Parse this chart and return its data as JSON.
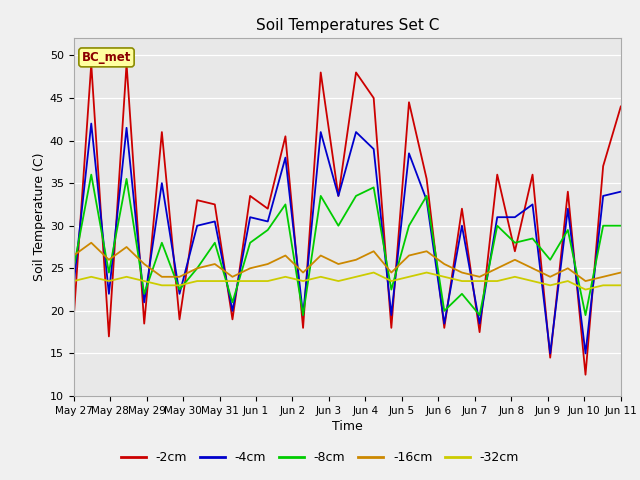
{
  "title": "Soil Temperatures Set C",
  "xlabel": "Time",
  "ylabel": "Soil Temperature (C)",
  "ylim": [
    10,
    52
  ],
  "yticks": [
    10,
    15,
    20,
    25,
    30,
    35,
    40,
    45,
    50
  ],
  "bg_color": "#e8e8e8",
  "fig_color": "#f0f0f0",
  "label_box": "BC_met",
  "series_colors": {
    "-2cm": "#cc0000",
    "-4cm": "#0000cc",
    "-8cm": "#00cc00",
    "-16cm": "#cc8800",
    "-32cm": "#cccc00"
  },
  "x_labels": [
    "May 27",
    "May 28",
    "May 29",
    "May 30",
    "May 31",
    "Jun 1",
    "Jun 2",
    "Jun 3",
    "Jun 4",
    "Jun 5",
    "Jun 6",
    "Jun 7",
    "Jun 8",
    "Jun 9",
    "Jun 10",
    "Jun 11"
  ],
  "series": {
    "-2cm": [
      19.0,
      49.0,
      17.0,
      49.0,
      18.5,
      41.0,
      19.0,
      33.0,
      32.5,
      19.0,
      33.5,
      32.0,
      40.5,
      18.0,
      48.0,
      33.5,
      48.0,
      45.0,
      18.0,
      44.5,
      35.5,
      18.0,
      32.0,
      17.5,
      36.0,
      27.0,
      36.0,
      14.5,
      34.0,
      12.5,
      37.0,
      44.0
    ],
    "-4cm": [
      23.0,
      42.0,
      22.0,
      41.5,
      21.0,
      35.0,
      22.0,
      30.0,
      30.5,
      20.0,
      31.0,
      30.5,
      38.0,
      19.5,
      41.0,
      33.5,
      41.0,
      39.0,
      19.5,
      38.5,
      33.0,
      18.5,
      30.0,
      18.5,
      31.0,
      31.0,
      32.5,
      15.0,
      32.0,
      15.0,
      33.5,
      34.0
    ],
    "-8cm": [
      25.0,
      36.0,
      24.5,
      35.5,
      22.0,
      28.0,
      22.5,
      25.0,
      28.0,
      21.0,
      28.0,
      29.5,
      32.5,
      19.5,
      33.5,
      30.0,
      33.5,
      34.5,
      22.5,
      30.0,
      33.5,
      20.0,
      22.0,
      19.5,
      30.0,
      28.0,
      28.5,
      26.0,
      29.5,
      19.5,
      30.0,
      30.0
    ],
    "-16cm": [
      26.5,
      28.0,
      26.0,
      27.5,
      25.5,
      24.0,
      24.0,
      25.0,
      25.5,
      24.0,
      25.0,
      25.5,
      26.5,
      24.5,
      26.5,
      25.5,
      26.0,
      27.0,
      24.5,
      26.5,
      27.0,
      25.5,
      24.5,
      24.0,
      25.0,
      26.0,
      25.0,
      24.0,
      25.0,
      23.5,
      24.0,
      24.5
    ],
    "-32cm": [
      23.5,
      24.0,
      23.5,
      24.0,
      23.5,
      23.0,
      23.0,
      23.5,
      23.5,
      23.5,
      23.5,
      23.5,
      24.0,
      23.5,
      24.0,
      23.5,
      24.0,
      24.5,
      23.5,
      24.0,
      24.5,
      24.0,
      23.5,
      23.5,
      23.5,
      24.0,
      23.5,
      23.0,
      23.5,
      22.5,
      23.0,
      23.0
    ]
  }
}
